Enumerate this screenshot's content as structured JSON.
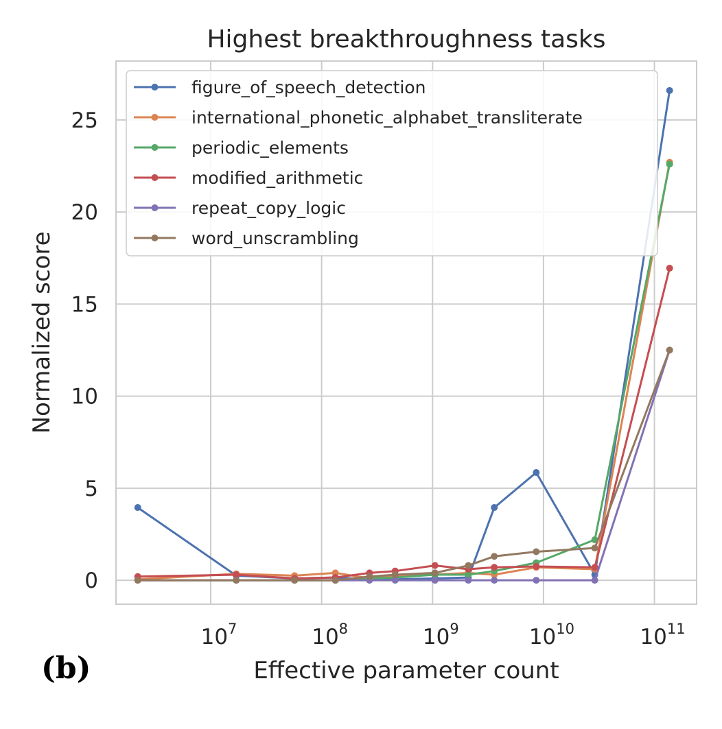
{
  "panel_label": "(b)",
  "chart_data": {
    "type": "line",
    "title": "Highest breakthroughness tasks",
    "xlabel": "Effective parameter count",
    "ylabel": "Normalized score",
    "x_scale": "log",
    "xlim": [
      1400000.0,
      240000000000.0
    ],
    "ylim": [
      -1.3,
      28.2
    ],
    "x_ticks": [
      {
        "value": 10000000.0,
        "base": "10",
        "exp": "7"
      },
      {
        "value": 100000000.0,
        "base": "10",
        "exp": "8"
      },
      {
        "value": 1000000000.0,
        "base": "10",
        "exp": "9"
      },
      {
        "value": 10000000000.0,
        "base": "10",
        "exp": "10"
      },
      {
        "value": 100000000000.0,
        "base": "10",
        "exp": "11"
      }
    ],
    "y_ticks": [
      0,
      5,
      10,
      15,
      20,
      25
    ],
    "grid": true,
    "legend_position": "upper-left",
    "series": [
      {
        "name": "figure_of_speech_detection",
        "color": "#4c72b0",
        "x": [
          2200000.0,
          17000000.0,
          57000000.0,
          133000000.0,
          270000000.0,
          460000000.0,
          1050000000.0,
          2100000000.0,
          3600000000.0,
          8600000000.0,
          29000000000.0,
          137000000000.0
        ],
        "y": [
          3.95,
          0.25,
          0.1,
          0.15,
          0.05,
          0.05,
          0.1,
          0.15,
          3.95,
          5.85,
          0.3,
          26.6
        ]
      },
      {
        "name": "international_phonetic_alphabet_transliterate",
        "color": "#dd8452",
        "x": [
          2200000.0,
          17000000.0,
          57000000.0,
          133000000.0,
          270000000.0,
          460000000.0,
          1050000000.0,
          2100000000.0,
          3600000000.0,
          8600000000.0,
          29000000000.0,
          137000000000.0
        ],
        "y": [
          0.05,
          0.35,
          0.25,
          0.4,
          0.1,
          0.2,
          0.3,
          0.4,
          0.3,
          0.7,
          0.6,
          22.7
        ]
      },
      {
        "name": "periodic_elements",
        "color": "#55a868",
        "x": [
          2200000.0,
          17000000.0,
          57000000.0,
          133000000.0,
          270000000.0,
          460000000.0,
          1050000000.0,
          2100000000.0,
          3600000000.0,
          8600000000.0,
          29000000000.0,
          137000000000.0
        ],
        "y": [
          0.0,
          0.0,
          0.0,
          0.0,
          0.1,
          0.15,
          0.3,
          0.3,
          0.5,
          0.95,
          2.2,
          22.6
        ]
      },
      {
        "name": "modified_arithmetic",
        "color": "#c44e52",
        "x": [
          2200000.0,
          17000000.0,
          57000000.0,
          133000000.0,
          270000000.0,
          460000000.0,
          1050000000.0,
          2100000000.0,
          3600000000.0,
          8600000000.0,
          29000000000.0,
          137000000000.0
        ],
        "y": [
          0.2,
          0.3,
          0.1,
          0.15,
          0.4,
          0.5,
          0.8,
          0.6,
          0.7,
          0.75,
          0.7,
          16.95
        ]
      },
      {
        "name": "repeat_copy_logic",
        "color": "#8172b3",
        "x": [
          2200000.0,
          17000000.0,
          57000000.0,
          133000000.0,
          270000000.0,
          460000000.0,
          1050000000.0,
          2100000000.0,
          3600000000.0,
          8600000000.0,
          29000000000.0,
          137000000000.0
        ],
        "y": [
          0.0,
          0.0,
          0.0,
          0.0,
          0.0,
          0.0,
          0.0,
          0.0,
          0.0,
          0.0,
          0.0,
          12.5
        ]
      },
      {
        "name": "word_unscrambling",
        "color": "#937860",
        "x": [
          2200000.0,
          17000000.0,
          57000000.0,
          133000000.0,
          270000000.0,
          460000000.0,
          1050000000.0,
          2100000000.0,
          3600000000.0,
          8600000000.0,
          29000000000.0,
          137000000000.0
        ],
        "y": [
          0.0,
          0.0,
          0.0,
          0.0,
          0.2,
          0.3,
          0.4,
          0.8,
          1.3,
          1.55,
          1.75,
          12.5
        ]
      }
    ]
  }
}
